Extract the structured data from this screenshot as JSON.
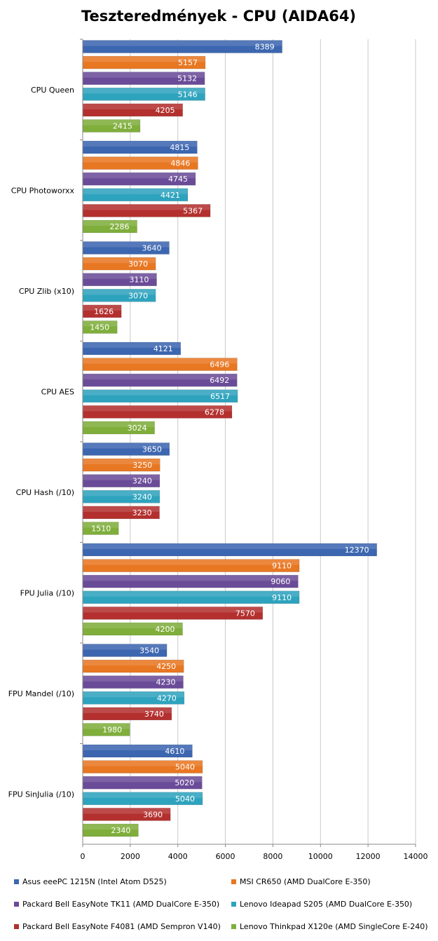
{
  "chart_data": {
    "type": "bar",
    "orientation": "horizontal",
    "title": "Teszteredmények - CPU (AIDA64)",
    "xlabel": "",
    "ylabel": "",
    "xlim": [
      0,
      14000
    ],
    "xticks": [
      0,
      2000,
      4000,
      6000,
      8000,
      10000,
      12000,
      14000
    ],
    "grid": true,
    "legend_position": "bottom",
    "categories": [
      "CPU Queen",
      "CPU Photoworxx",
      "CPU Zlib (x10)",
      "CPU AES",
      "CPU Hash (/10)",
      "FPU Julia (/10)",
      "FPU Mandel (/10)",
      "FPU SinJulia (/10)"
    ],
    "series": [
      {
        "name": "Asus eeePC 1215N (Intel Atom D525)",
        "color": "#3C66B0",
        "values": [
          8389,
          4815,
          3640,
          4121,
          3650,
          12370,
          3540,
          4610
        ]
      },
      {
        "name": "MSI CR650 (AMD DualCore E-350)",
        "color": "#E87722",
        "values": [
          5157,
          4846,
          3070,
          6496,
          3250,
          9110,
          4250,
          5040
        ]
      },
      {
        "name": "Packard Bell EasyNote TK11 (AMD DualCore E-350)",
        "color": "#6A4B98",
        "values": [
          5132,
          4745,
          3110,
          6492,
          3240,
          9060,
          4230,
          5020
        ]
      },
      {
        "name": "Lenovo Ideapad S205 (AMD DualCore E-350)",
        "color": "#2EA3BE",
        "values": [
          5146,
          4421,
          3070,
          6517,
          3240,
          9110,
          4270,
          5040
        ]
      },
      {
        "name": "Packard Bell EasyNote F4081 (AMD Sempron V140)",
        "color": "#B3302E",
        "values": [
          4205,
          5367,
          1626,
          6278,
          3230,
          7570,
          3740,
          3690
        ]
      },
      {
        "name": "Lenovo Thinkpad X120e (AMD SingleCore E-240)",
        "color": "#7FAE3B",
        "values": [
          2415,
          2286,
          1450,
          3024,
          1510,
          4200,
          1980,
          2340
        ]
      }
    ]
  }
}
